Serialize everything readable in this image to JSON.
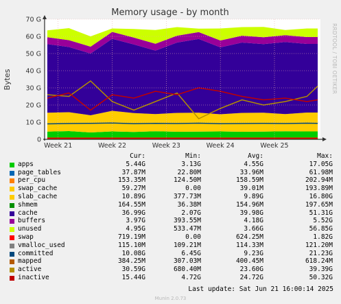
{
  "chart_data": {
    "type": "area",
    "title": "Memory usage - by month",
    "ylabel": "Bytes",
    "side_label": "RRDTOOL / TOBI OETIKER",
    "ylim": [
      0,
      70
    ],
    "y_ticks": [
      {
        "value": 0,
        "label": "0"
      },
      {
        "value": 10,
        "label": "10 G"
      },
      {
        "value": 20,
        "label": "20 G"
      },
      {
        "value": 30,
        "label": "30 G"
      },
      {
        "value": 40,
        "label": "40 G"
      },
      {
        "value": 50,
        "label": "50 G"
      },
      {
        "value": 60,
        "label": "60 G"
      },
      {
        "value": 70,
        "label": "70 G"
      }
    ],
    "x_ticks": [
      {
        "week": 21,
        "label": "Week 21"
      },
      {
        "week": 22,
        "label": "Week 22"
      },
      {
        "week": 23,
        "label": "Week 23"
      },
      {
        "week": 24,
        "label": "Week 24"
      },
      {
        "week": 25,
        "label": "Week 25"
      }
    ],
    "x_range_weeks": [
      20.75,
      25.85
    ],
    "grid": true,
    "colors": {
      "apps": "#00cc00",
      "page_tables": "#0066b3",
      "per_cpu": "#ff8000",
      "swap_cache": "#ffcc00",
      "slab_cache": "#ffcc00",
      "shmem": "#008f00",
      "cache": "#330099",
      "buffers": "#990099",
      "unused": "#ccff00",
      "swap": "#ff0000",
      "vmalloc_used": "#808080",
      "committed": "#00487d",
      "mapped": "#b35a00",
      "active": "#b38f00",
      "inactive": "#c00000"
    },
    "approx_series_GB": {
      "x_weeks": [
        20.8,
        21.2,
        21.6,
        22.0,
        22.4,
        22.8,
        23.2,
        23.6,
        24.0,
        24.4,
        24.8,
        25.2,
        25.6,
        25.8
      ],
      "apps": [
        4.5,
        4.8,
        4.0,
        4.6,
        4.3,
        4.7,
        4.4,
        4.5,
        4.6,
        4.4,
        4.5,
        4.7,
        4.6,
        4.6
      ],
      "slab_cache": [
        11,
        11,
        10,
        12,
        11,
        10,
        11,
        11,
        10,
        11,
        11,
        10,
        11,
        11
      ],
      "cache": [
        40,
        38,
        36,
        42,
        40,
        37,
        41,
        43,
        39,
        41,
        40,
        42,
        40,
        40
      ],
      "buffers": [
        4,
        4,
        4,
        4,
        4,
        4,
        4,
        4,
        4,
        4,
        4,
        4,
        4,
        4
      ],
      "unused": [
        4,
        7,
        6,
        2,
        5,
        8,
        5,
        2,
        7,
        5,
        6,
        3,
        5,
        5
      ],
      "committed": [
        9.0,
        9.2,
        9.3,
        9.5,
        9.1,
        9.3,
        9.2,
        9.4,
        9.1,
        9.2,
        9.3,
        9.2,
        9.4,
        9.3
      ],
      "mapped": [
        0.4,
        0.4,
        0.4,
        0.4,
        0.4,
        0.4,
        0.4,
        0.4,
        0.4,
        0.4,
        0.4,
        0.4,
        0.4,
        0.4
      ],
      "active": [
        26,
        25,
        34,
        22,
        17,
        22,
        27,
        12,
        18,
        23,
        20,
        22,
        25,
        31
      ],
      "inactive": [
        24,
        27,
        17,
        26,
        24,
        28,
        26,
        30,
        28,
        25,
        23,
        24,
        22,
        23
      ],
      "swap": [
        0.7,
        0.7,
        0.7,
        0.7,
        0.7,
        0.7,
        0.7,
        0.7,
        0.7,
        0.7,
        0.7,
        0.7,
        0.7,
        0.7
      ]
    }
  },
  "legend": {
    "headers": {
      "cur": "Cur:",
      "min": "Min:",
      "avg": "Avg:",
      "max": "Max:"
    },
    "rows": [
      {
        "name": "apps",
        "color": "#00cc00",
        "cur": "5.44G",
        "min": "3.13G",
        "avg": "4.55G",
        "max": "17.05G"
      },
      {
        "name": "page_tables",
        "color": "#0066b3",
        "cur": "37.87M",
        "min": "22.80M",
        "avg": "33.96M",
        "max": "61.98M"
      },
      {
        "name": "per_cpu",
        "color": "#ff8000",
        "cur": "153.35M",
        "min": "124.50M",
        "avg": "158.59M",
        "max": "202.94M"
      },
      {
        "name": "swap_cache",
        "color": "#ffcc00",
        "cur": "59.27M",
        "min": "0.00",
        "avg": "39.01M",
        "max": "193.89M"
      },
      {
        "name": "slab_cache",
        "color": "#ffcc00",
        "cur": "10.89G",
        "min": "377.73M",
        "avg": "9.89G",
        "max": "16.80G"
      },
      {
        "name": "shmem",
        "color": "#008f00",
        "cur": "164.55M",
        "min": "36.38M",
        "avg": "154.96M",
        "max": "197.65M"
      },
      {
        "name": "cache",
        "color": "#330099",
        "cur": "36.99G",
        "min": "2.07G",
        "avg": "39.98G",
        "max": "51.31G"
      },
      {
        "name": "buffers",
        "color": "#990099",
        "cur": "3.97G",
        "min": "393.55M",
        "avg": "4.18G",
        "max": "5.52G"
      },
      {
        "name": "unused",
        "color": "#ccff00",
        "cur": "4.95G",
        "min": "533.47M",
        "avg": "3.66G",
        "max": "56.85G"
      },
      {
        "name": "swap",
        "color": "#ff0000",
        "cur": "719.19M",
        "min": "0.00",
        "avg": "624.25M",
        "max": "1.82G"
      },
      {
        "name": "vmalloc_used",
        "color": "#808080",
        "cur": "115.10M",
        "min": "109.21M",
        "avg": "114.33M",
        "max": "121.20M"
      },
      {
        "name": "committed",
        "color": "#00487d",
        "cur": "10.08G",
        "min": "6.45G",
        "avg": "9.23G",
        "max": "21.23G"
      },
      {
        "name": "mapped",
        "color": "#b35a00",
        "cur": "384.25M",
        "min": "307.03M",
        "avg": "400.45M",
        "max": "618.24M"
      },
      {
        "name": "active",
        "color": "#b38f00",
        "cur": "30.59G",
        "min": "680.40M",
        "avg": "23.60G",
        "max": "39.39G"
      },
      {
        "name": "inactive",
        "color": "#c00000",
        "cur": "15.44G",
        "min": "4.72G",
        "avg": "24.72G",
        "max": "50.32G"
      }
    ]
  },
  "footer": {
    "last_update": "Last update: Sat Jun 21 16:00:14 2025",
    "version": "Munin 2.0.73"
  }
}
